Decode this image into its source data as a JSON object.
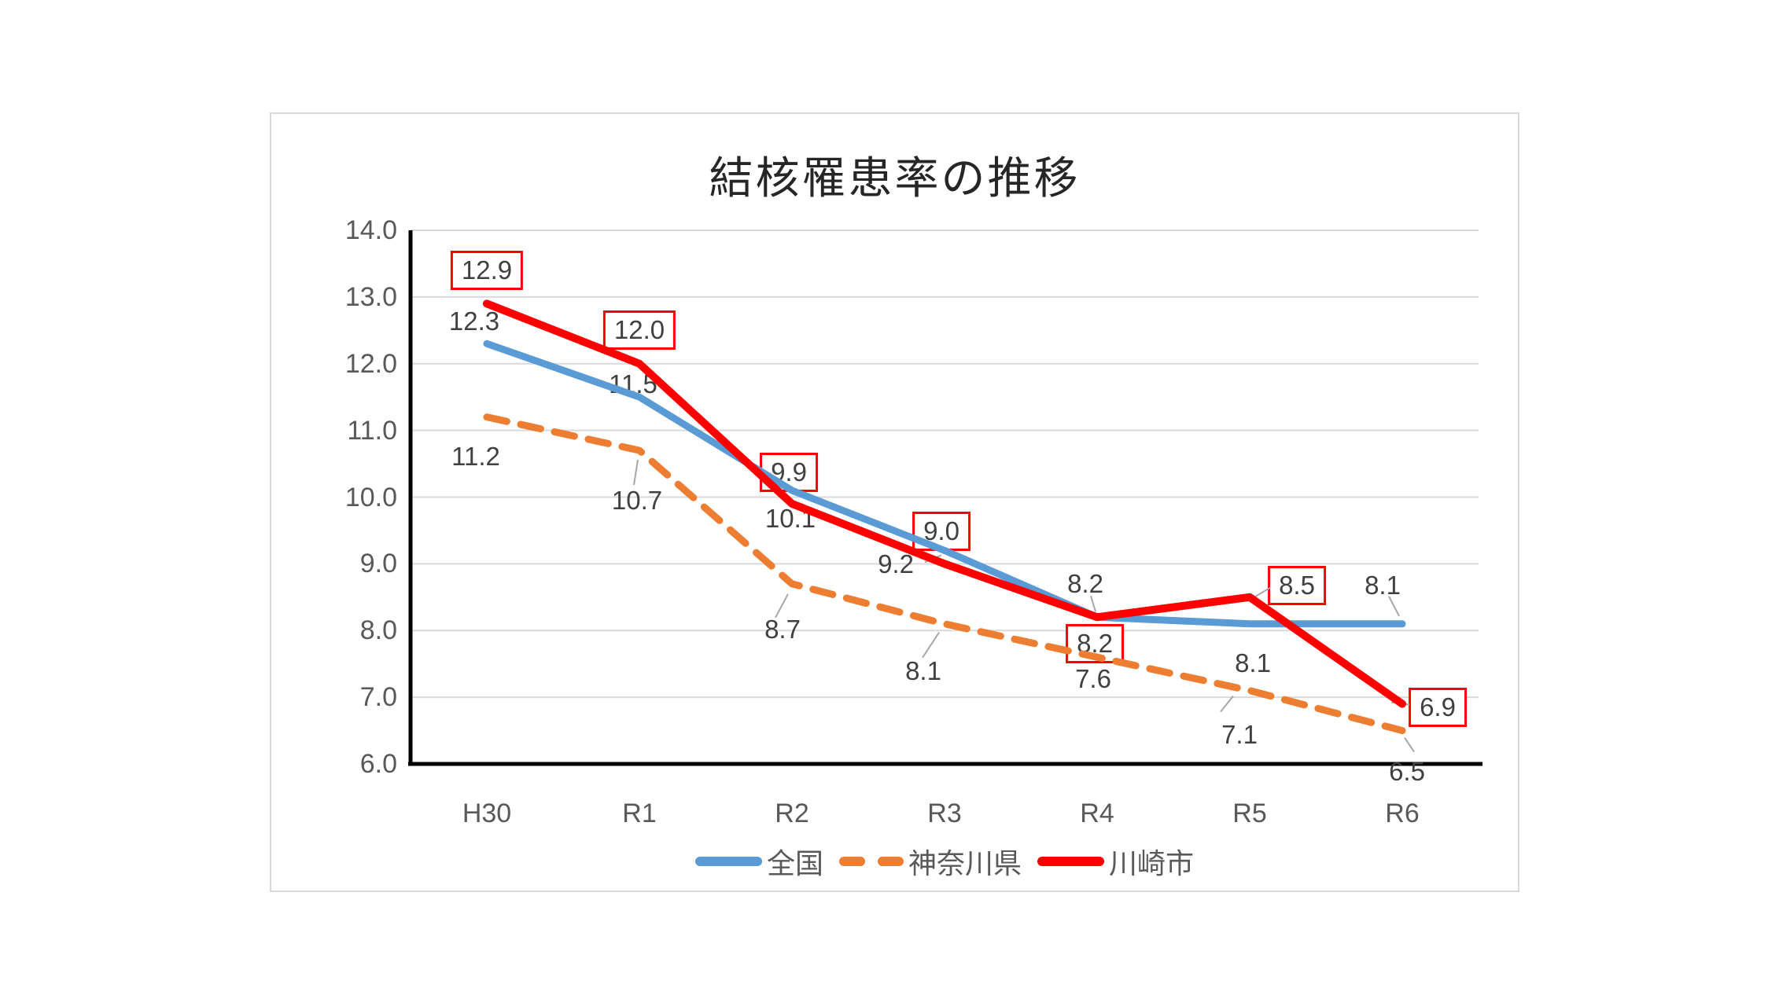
{
  "chart_data": {
    "type": "line",
    "title": "結核罹患率の推移",
    "categories": [
      "H30",
      "R1",
      "R2",
      "R3",
      "R4",
      "R5",
      "R6"
    ],
    "series": [
      {
        "name": "全国",
        "color": "#5B9BD5",
        "line_style": "solid",
        "values": [
          12.3,
          11.5,
          10.1,
          9.2,
          8.2,
          8.1,
          8.1
        ],
        "labels": [
          "12.3",
          "11.5",
          "10.1",
          "9.2",
          "8.2",
          "8.1",
          "8.1"
        ],
        "label_style": "plain"
      },
      {
        "name": "神奈川県",
        "color": "#ED7D31",
        "line_style": "dashed",
        "values": [
          11.2,
          10.7,
          8.7,
          8.1,
          7.6,
          7.1,
          6.5
        ],
        "labels": [
          "11.2",
          "10.7",
          "8.7",
          "8.1",
          "7.6",
          "7.1",
          "6.5"
        ],
        "label_style": "plain"
      },
      {
        "name": "川崎市",
        "color": "#FF0000",
        "line_style": "solid",
        "values": [
          12.9,
          12.0,
          9.9,
          9.0,
          8.2,
          8.5,
          6.9
        ],
        "labels": [
          "12.9",
          "12.0",
          "9.9",
          "9.0",
          "8.2",
          "8.5",
          "6.9"
        ],
        "label_style": "boxed_red"
      }
    ],
    "y_axis": {
      "min": 6.0,
      "max": 14.0,
      "ticks": [
        "14.0",
        "13.0",
        "12.0",
        "11.0",
        "10.0",
        "9.0",
        "8.0",
        "7.0",
        "6.0"
      ]
    },
    "grid": true,
    "legend_position": "bottom",
    "colors": {
      "label_text": "#404040",
      "axis_text": "#595959",
      "gridline": "#D9D9D9",
      "axis_line": "#000000",
      "leader_line": "#A6A6A6",
      "label_box_border": "#FF0000",
      "label_box_fill": "#FFFFFF",
      "chart_border": "#D9D9D9"
    }
  }
}
